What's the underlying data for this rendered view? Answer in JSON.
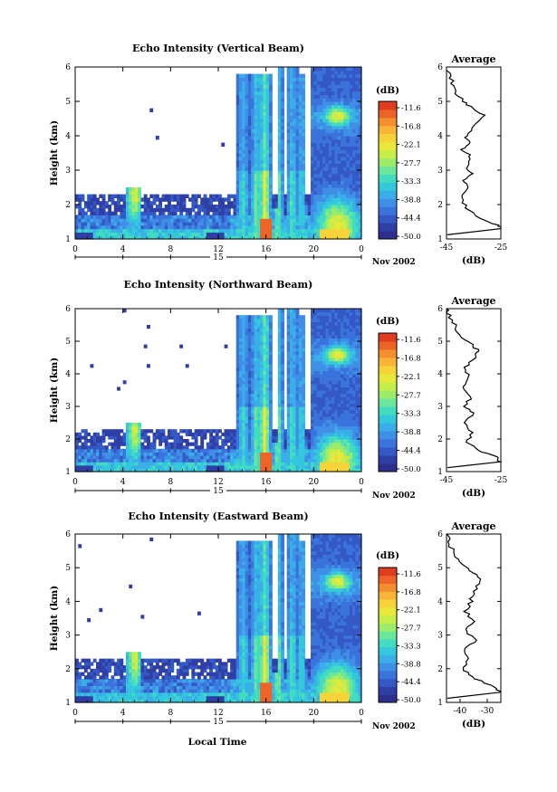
{
  "figure": {
    "xlabel": "Local Time",
    "date_label": "15",
    "date_suffix": [
      "Nov 2002",
      "Nov 2002",
      "Nov 2002"
    ]
  },
  "colorbar": {
    "unit": "(dB)",
    "levels": [
      "-11.6",
      "-16.8",
      "-22.1",
      "-27.7",
      "-33.3",
      "-38.8",
      "-44.4",
      "-50.0"
    ],
    "colors": [
      "#2d2f8e",
      "#2f3fa6",
      "#3459c4",
      "#3b73dc",
      "#3f8fe6",
      "#3aaee8",
      "#34c8dd",
      "#42dcc0",
      "#6ce69a",
      "#9cec6c",
      "#c7ee48",
      "#e8e83a",
      "#f7d33a",
      "#f9b438",
      "#f48f30",
      "#ec6427",
      "#e03c20"
    ]
  },
  "chart_data": [
    {
      "type": "heatmap",
      "title": "Echo Intensity (Vertical Beam)",
      "xlabel": "",
      "ylabel": "Height (km)",
      "x_ticks": [
        "0",
        "4",
        "8",
        "12",
        "16",
        "20",
        "0"
      ],
      "y_ticks": [
        "1",
        "2",
        "3",
        "4",
        "5",
        "6"
      ],
      "xlim": [
        0,
        24
      ],
      "ylim": [
        1,
        6
      ],
      "colorbar_range_db": [
        -50.0,
        -11.6
      ],
      "profile": {
        "title": "Average",
        "xlabel": "(dB)",
        "x_ticks": [
          "-45",
          "-25"
        ],
        "xlim": [
          -45,
          -25
        ],
        "y_ticks": [
          "1",
          "2",
          "3",
          "4",
          "5",
          "6"
        ],
        "points": [
          [
            -24,
            1.3
          ],
          [
            -26,
            1.4
          ],
          [
            -33,
            1.6
          ],
          [
            -38,
            1.9
          ],
          [
            -39,
            2.2
          ],
          [
            -37,
            2.5
          ],
          [
            -39,
            2.7
          ],
          [
            -35,
            2.9
          ],
          [
            -38,
            3.1
          ],
          [
            -36,
            3.4
          ],
          [
            -39,
            3.6
          ],
          [
            -37,
            3.8
          ],
          [
            -38,
            4.0
          ],
          [
            -35,
            4.3
          ],
          [
            -31,
            4.6
          ],
          [
            -35,
            4.8
          ],
          [
            -39,
            5.0
          ],
          [
            -42,
            5.3
          ],
          [
            -43,
            5.6
          ],
          [
            -45,
            5.9
          ]
        ]
      }
    },
    {
      "type": "heatmap",
      "title": "Echo Intensity (Northward Beam)",
      "xlabel": "",
      "ylabel": "Height (km)",
      "x_ticks": [
        "0",
        "4",
        "8",
        "12",
        "16",
        "20",
        "0"
      ],
      "y_ticks": [
        "1",
        "2",
        "3",
        "4",
        "5",
        "6"
      ],
      "xlim": [
        0,
        24
      ],
      "ylim": [
        1,
        6
      ],
      "colorbar_range_db": [
        -50.0,
        -11.6
      ],
      "profile": {
        "title": "Average",
        "xlabel": "(dB)",
        "x_ticks": [
          "-45",
          "-25"
        ],
        "xlim": [
          -45,
          -25
        ],
        "y_ticks": [
          "1",
          "2",
          "3",
          "4",
          "5",
          "6"
        ],
        "points": [
          [
            -25,
            1.3
          ],
          [
            -27,
            1.45
          ],
          [
            -33,
            1.65
          ],
          [
            -37,
            1.9
          ],
          [
            -36,
            2.2
          ],
          [
            -38,
            2.5
          ],
          [
            -35,
            2.8
          ],
          [
            -38,
            3.0
          ],
          [
            -36,
            3.3
          ],
          [
            -39,
            3.6
          ],
          [
            -37,
            3.9
          ],
          [
            -38,
            4.2
          ],
          [
            -35,
            4.5
          ],
          [
            -33,
            4.7
          ],
          [
            -36,
            4.9
          ],
          [
            -40,
            5.2
          ],
          [
            -42,
            5.5
          ],
          [
            -44,
            5.8
          ],
          [
            -45,
            6.0
          ]
        ]
      }
    },
    {
      "type": "heatmap",
      "title": "Echo Intensity (Eastward Beam)",
      "xlabel": "Local Time",
      "ylabel": "Height (km)",
      "x_ticks": [
        "0",
        "4",
        "8",
        "12",
        "16",
        "20",
        "0"
      ],
      "y_ticks": [
        "1",
        "2",
        "3",
        "4",
        "5",
        "6"
      ],
      "xlim": [
        0,
        24
      ],
      "ylim": [
        1,
        6
      ],
      "colorbar_range_db": [
        -50.0,
        -11.6
      ],
      "profile": {
        "title": "Average",
        "xlabel": "(dB)",
        "x_ticks": [
          "-40",
          "-30"
        ],
        "xlim": [
          -45,
          -25
        ],
        "y_ticks": [
          "1",
          "2",
          "3",
          "4",
          "5",
          "6"
        ],
        "points": [
          [
            -25,
            1.3
          ],
          [
            -27,
            1.45
          ],
          [
            -34,
            1.7
          ],
          [
            -39,
            1.95
          ],
          [
            -37,
            2.3
          ],
          [
            -39,
            2.6
          ],
          [
            -34,
            2.85
          ],
          [
            -38,
            3.1
          ],
          [
            -35,
            3.4
          ],
          [
            -38,
            3.7
          ],
          [
            -36,
            4.0
          ],
          [
            -35,
            4.3
          ],
          [
            -32,
            4.6
          ],
          [
            -35,
            4.85
          ],
          [
            -39,
            5.1
          ],
          [
            -42,
            5.4
          ],
          [
            -44,
            5.7
          ],
          [
            -45,
            6.0
          ]
        ]
      }
    }
  ]
}
